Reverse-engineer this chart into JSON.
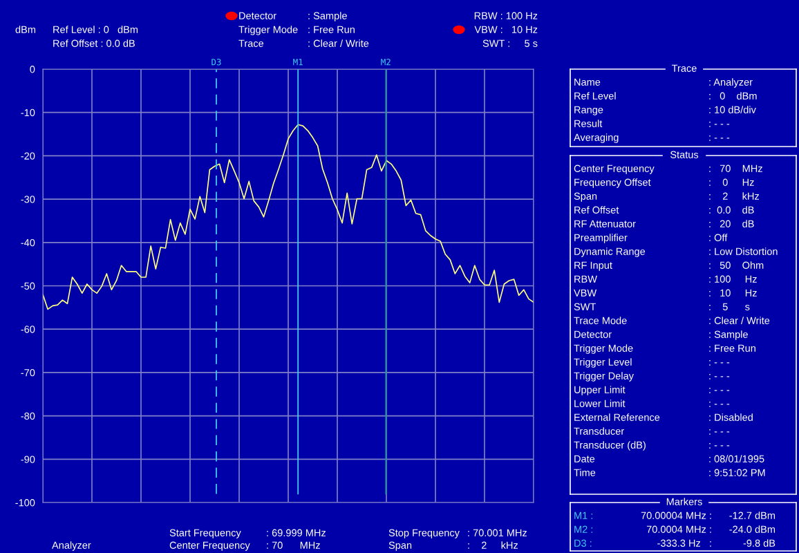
{
  "chart_data": [
    {
      "type": "line",
      "ylabel": "dBm",
      "ylim": [
        -100,
        0
      ],
      "yticks": [
        0,
        -10,
        -20,
        -30,
        -40,
        -50,
        -60,
        -70,
        -80,
        -90,
        -100
      ],
      "tick_labels": "y",
      "grid": true,
      "marker": "none",
      "line_style": "solid",
      "categories": [
        null,
        null,
        null,
        null,
        null,
        null,
        null,
        null,
        null,
        null,
        null,
        null,
        null,
        null,
        null,
        null,
        null,
        null,
        null,
        null,
        null,
        null,
        null,
        null,
        null,
        null,
        null,
        null,
        null,
        null,
        null,
        null,
        null,
        null,
        null,
        null,
        null,
        null,
        null,
        null,
        null,
        null,
        null,
        null,
        null,
        null,
        null,
        null,
        null,
        null,
        null,
        null,
        null,
        null,
        null,
        null,
        null,
        null,
        null,
        null,
        null,
        null,
        null,
        null,
        null,
        null,
        null,
        null,
        null,
        null,
        null,
        null,
        null,
        null,
        null,
        null,
        null,
        null,
        null,
        null,
        null,
        null,
        null,
        null,
        null,
        null,
        null,
        null,
        null,
        null,
        null,
        null,
        null,
        null,
        null,
        null,
        null,
        null,
        null,
        null,
        null
      ],
      "series": [
        {
          "color": "#ffff80",
          "values": [
            -52.0,
            -55.4,
            -54.6,
            -54.4,
            -53.3,
            -54.1,
            -48.0,
            -49.6,
            -51.7,
            -49.6,
            -50.9,
            -51.7,
            -50.1,
            -47.2,
            -50.9,
            -48.8,
            -45.3,
            -46.7,
            -46.7,
            -46.7,
            -48.0,
            -48.0,
            -40.8,
            -46.1,
            -41.1,
            -41.3,
            -34.7,
            -39.5,
            -35.5,
            -38.1,
            -32.3,
            -34.6,
            -29.4,
            -33.1,
            -23.2,
            -22.4,
            -21.9,
            -26.2,
            -20.9,
            -23.5,
            -26.2,
            -29.9,
            -25.9,
            -30.4,
            -31.8,
            -34.1,
            -30.4,
            -26.4,
            -23.2,
            -19.8,
            -16.1,
            -14.2,
            -12.8,
            -13.1,
            -14.2,
            -15.8,
            -17.7,
            -23.0,
            -26.2,
            -29.9,
            -32.4,
            -35.5,
            -28.6,
            -35.7,
            -29.9,
            -29.9,
            -23.2,
            -22.7,
            -19.8,
            -23.5,
            -21.1,
            -21.9,
            -23.5,
            -25.6,
            -31.5,
            -30.2,
            -33.3,
            -33.6,
            -37.3,
            -38.4,
            -39.2,
            -39.7,
            -42.7,
            -44.0,
            -47.2,
            -45.3,
            -47.8,
            -49.3,
            -45.3,
            -48.5,
            -49.8,
            -49.8,
            -46.4,
            -53.8,
            -49.6,
            -48.8,
            -48.5,
            -52.2,
            -50.9,
            -53.0,
            -53.8
          ]
        }
      ],
      "ref_lines": [
        {
          "axis": "x",
          "label": "D3",
          "color": "#40c8f0",
          "line_style": "dashed"
        },
        {
          "axis": "x",
          "label": "M1",
          "color": "#40c8f0",
          "line_style": "solid"
        },
        {
          "axis": "x",
          "label": "M2",
          "color": "#109898",
          "line_style": "solid"
        }
      ],
      "annotations": [
        "Ref Level : 0   dBm",
        "Ref Offset : 0.0 dB",
        "Detector",
        ": Sample",
        "Trigger Mode",
        ": Free Run",
        "Trace",
        ": Clear / Write",
        "RBW : 100 Hz",
        "VBW :   10 Hz",
        "SWT :     5 s",
        "Start Frequency",
        ": 69.999 MHz",
        "Center Frequency",
        ": 70      MHz",
        "Stop Frequency",
        ": 70.001 MHz",
        "Span",
        ":    2     kHz",
        "Analyzer"
      ]
    },
    {
      "type": "other",
      "title": "Trace",
      "annotations": [
        "Name",
        ": Analyzer",
        "Ref Level",
        ":   0    dBm",
        "Range",
        ": 10 dB/div",
        "Result",
        ": - - -",
        "Averaging",
        ": - - -"
      ]
    },
    {
      "type": "other",
      "title": "Status",
      "annotations": [
        "Center Frequency",
        ":   70    MHz",
        "Frequency Offset",
        ":    0     Hz",
        "Span",
        ":    2     kHz",
        "Ref Offset",
        ":  0.0    dB",
        "RF Attenuator",
        ":   20    dB",
        "Preamplifier",
        ": Off",
        "Dynamic Range",
        ": Low Distortion",
        "RF Input",
        ":   50    Ohm",
        "RBW",
        ": 100     Hz",
        "VBW",
        ":   10     Hz",
        "SWT",
        ":    5      s",
        "Trace Mode",
        ": Clear / Write",
        "Detector",
        ": Sample",
        "Trigger Mode",
        ": Free Run",
        "Trigger Level",
        ": - - -",
        "Trigger Delay",
        ": - - -",
        "Upper Limit",
        ": - - -",
        "Lower Limit",
        ": - - -",
        "External Reference",
        ": Disabled",
        "Transducer",
        ": - - -",
        "Transducer (dB)",
        ": - - -",
        "Date",
        ": 08/01/1995",
        "Time",
        ": 9:51:02 PM"
      ]
    },
    {
      "type": "other",
      "title": "Markers",
      "annotations": [
        "M1 :",
        "70.00004 MHz :",
        "-12.7 dBm",
        "M2 :",
        "70.0004 MHz :",
        "-24.0 dBm",
        "D3 :",
        "-333.3 Hz   :",
        "-9.8 dB"
      ]
    }
  ]
}
